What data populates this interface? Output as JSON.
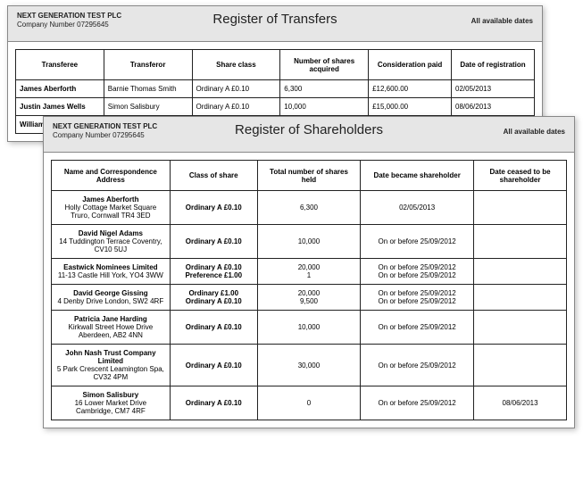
{
  "company": {
    "name": "NEXT GENERATION TEST PLC",
    "number_label": "Company Number 07295645"
  },
  "dates_note": "All available dates",
  "transfers": {
    "title": "Register of Transfers",
    "columns": [
      "Transferee",
      "Transferor",
      "Share class",
      "Number of shares acquired",
      "Consideration paid",
      "Date of registration"
    ],
    "rows": [
      {
        "transferee": "James Aberforth",
        "transferor": "Barnie Thomas Smith",
        "share_class": "Ordinary A £0.10",
        "num": "6,300",
        "consideration": "£12,600.00",
        "date": "02/05/2013"
      },
      {
        "transferee": "Justin James Wells",
        "transferor": "Simon Salisbury",
        "share_class": "Ordinary A £0.10",
        "num": "10,000",
        "consideration": "£15,000.00",
        "date": "08/06/2013"
      },
      {
        "transferee": "William",
        "transferor": "",
        "share_class": "",
        "num": "",
        "consideration": "",
        "date": ""
      }
    ]
  },
  "shareholders": {
    "title": "Register of Shareholders",
    "columns": [
      "Name and Correspondence Address",
      "Class of share",
      "Total number of shares held",
      "Date became shareholder",
      "Date ceased to be shareholder"
    ],
    "rows": [
      {
        "name": "James Aberforth",
        "address": "Holly Cottage Market Square Truro, Cornwall TR4 3ED",
        "classes": [
          "Ordinary A £0.10"
        ],
        "totals": [
          "6,300"
        ],
        "became": [
          "02/05/2013"
        ],
        "ceased": [
          ""
        ]
      },
      {
        "name": "David Nigel Adams",
        "address": "14 Tuddington Terrace Coventry, CV10 5UJ",
        "classes": [
          "Ordinary A £0.10"
        ],
        "totals": [
          "10,000"
        ],
        "became": [
          "On or before 25/09/2012"
        ],
        "ceased": [
          ""
        ]
      },
      {
        "name": "Eastwick Nominees Limited",
        "address": "11-13 Castle Hill York, YO4 3WW",
        "classes": [
          "Ordinary A £0.10",
          "Preference £1.00"
        ],
        "totals": [
          "20,000",
          "1"
        ],
        "became": [
          "On or before 25/09/2012",
          "On or before 25/09/2012"
        ],
        "ceased": [
          "",
          ""
        ]
      },
      {
        "name": "David George Gissing",
        "address": "4 Denby Drive London, SW2 4RF",
        "classes": [
          "Ordinary £1.00",
          "Ordinary A £0.10"
        ],
        "totals": [
          "20,000",
          "9,500"
        ],
        "became": [
          "On or before 25/09/2012",
          "On or before 25/09/2012"
        ],
        "ceased": [
          "",
          ""
        ]
      },
      {
        "name": "Patricia Jane Harding",
        "address": "Kirkwall Street Howe Drive Aberdeen, AB2 4NN",
        "classes": [
          "Ordinary A £0.10"
        ],
        "totals": [
          "10,000"
        ],
        "became": [
          "On or before 25/09/2012"
        ],
        "ceased": [
          ""
        ]
      },
      {
        "name": "John Nash Trust Company Limited",
        "address": "5 Park Crescent Leamington Spa, CV32 4PM",
        "classes": [
          "Ordinary A £0.10"
        ],
        "totals": [
          "30,000"
        ],
        "became": [
          "On or before 25/09/2012"
        ],
        "ceased": [
          ""
        ]
      },
      {
        "name": "Simon Salisbury",
        "address": "16 Lower Market Drive Cambridge, CM7 4RF",
        "classes": [
          "Ordinary A £0.10"
        ],
        "totals": [
          "0"
        ],
        "became": [
          "On or before 25/09/2012"
        ],
        "ceased": [
          "08/06/2013"
        ]
      }
    ]
  },
  "col_widths": {
    "transfers": [
      "17%",
      "17%",
      "17%",
      "17%",
      "16%",
      "16%"
    ],
    "shareholders": [
      "23%",
      "17%",
      "20%",
      "22%",
      "18%"
    ]
  }
}
